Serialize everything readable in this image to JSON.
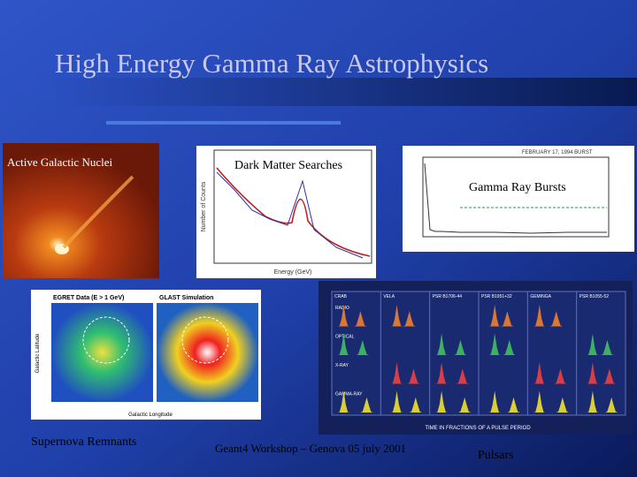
{
  "slide": {
    "title": "High Energy Gamma Ray Astrophysics",
    "footer": "Geant4 Workshop – Genova 05 july 2001",
    "panels": [
      {
        "label": "Active Galactic Nuclei"
      },
      {
        "label": "Dark Matter Searches",
        "x_label": "Energy (GeV)",
        "y_label": "Number of Counts"
      },
      {
        "label": "Gamma Ray Bursts",
        "heading": "FEBRUARY 17, 1994 BURST"
      },
      {
        "label": "Supernova Remnants",
        "left_title": "EGRET Data (E > 1 GeV)",
        "right_title": "GLAST Simulation",
        "x_label": "Galactic Longitude",
        "y_label": "Galactic Latitude"
      },
      {
        "label": "Pulsars",
        "columns": [
          "CRAB",
          "VELA",
          "PSR B1706-44",
          "PSR B1951+32",
          "GEMINGA",
          "PSR B1055-52"
        ],
        "rows": [
          "RADIO",
          "OPTICAL",
          "X-RAY",
          "GAMMA-RAY"
        ],
        "x_label": "TIME IN FRACTIONS OF A PULSE PERIOD"
      }
    ]
  }
}
